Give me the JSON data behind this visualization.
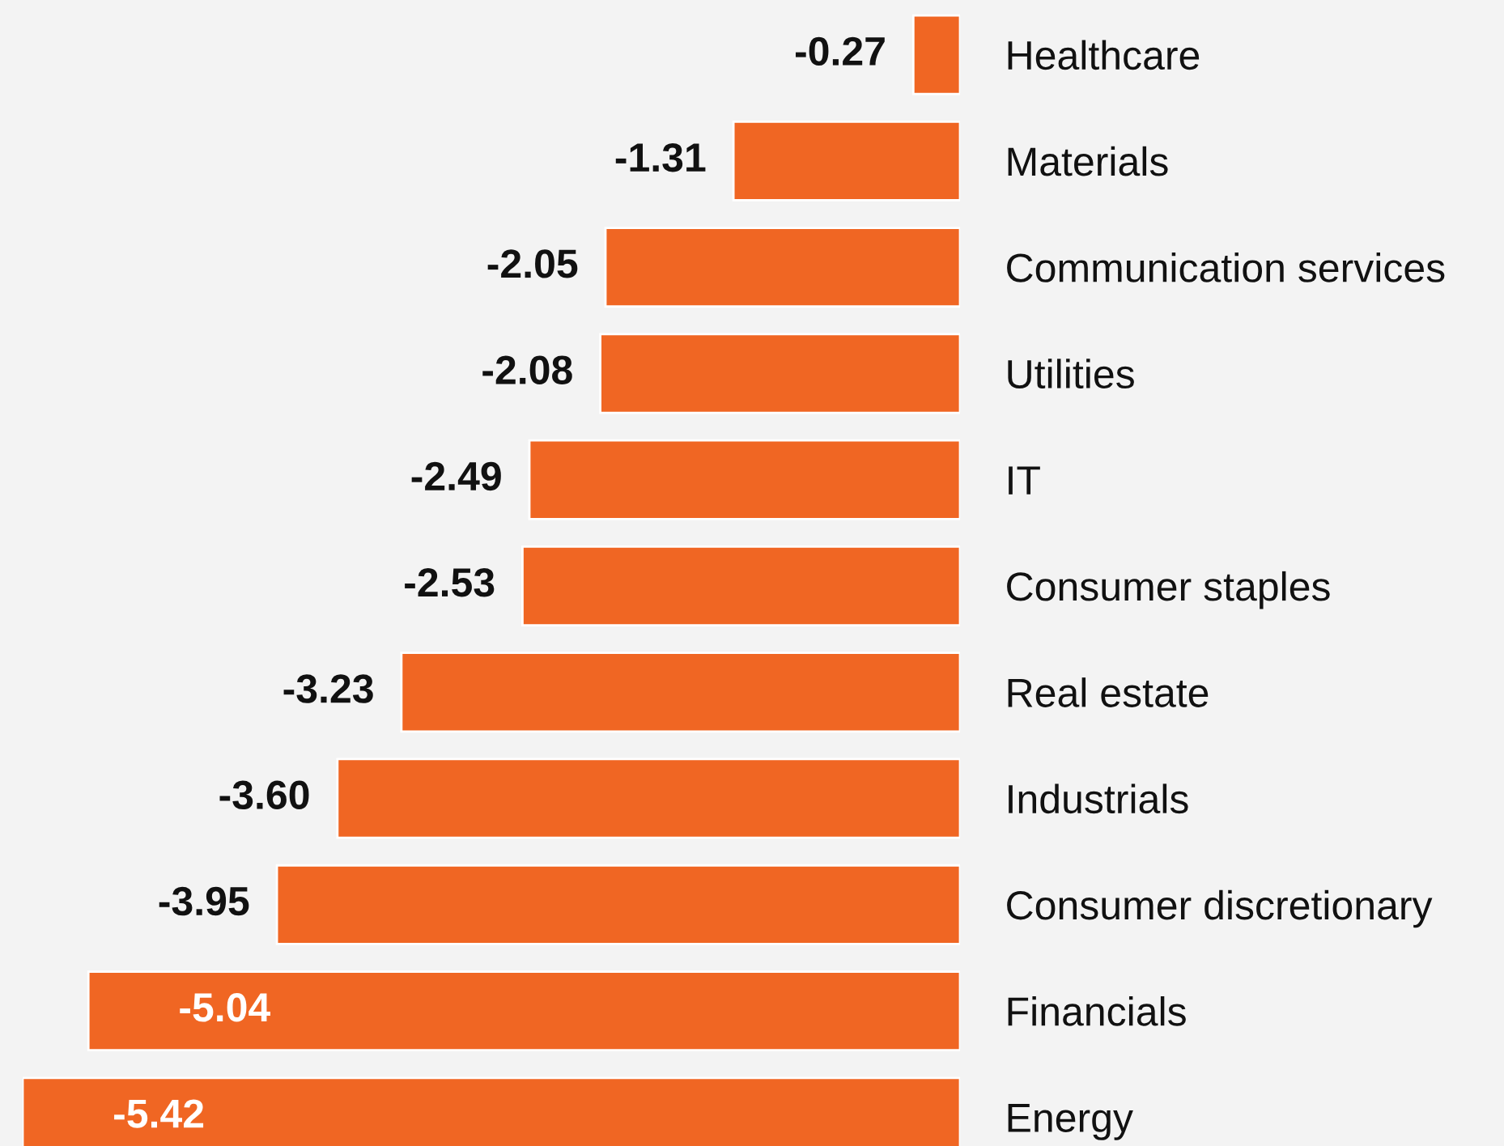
{
  "chart_data": {
    "type": "bar",
    "orientation": "horizontal",
    "categories": [
      "Healthcare",
      "Materials",
      "Communication services",
      "Utilities",
      "IT",
      "Consumer staples",
      "Real estate",
      "Industrials",
      "Consumer discretionary",
      "Financials",
      "Energy"
    ],
    "values": [
      -0.27,
      -1.31,
      -2.05,
      -2.08,
      -2.49,
      -2.53,
      -3.23,
      -3.6,
      -3.95,
      -5.04,
      -5.42
    ],
    "value_labels": [
      "-0.27",
      "-1.31",
      "-2.05",
      "-2.08",
      "-2.49",
      "-2.53",
      "-3.23",
      "-3.60",
      "-3.95",
      "-5.04",
      "-5.42"
    ],
    "color": "#f06623",
    "grid": false,
    "legend": false
  }
}
